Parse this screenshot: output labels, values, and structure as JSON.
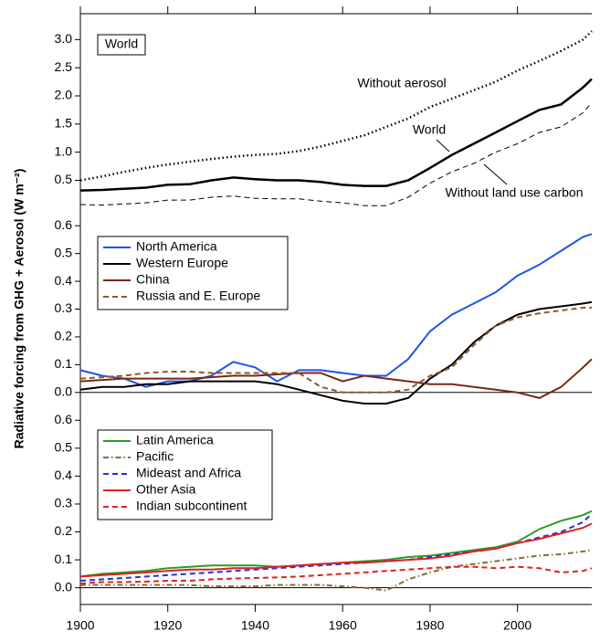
{
  "chart_data": [
    {
      "type": "line",
      "panel_label": "World",
      "inline_labels": true,
      "x": [
        1900,
        1905,
        1910,
        1915,
        1920,
        1925,
        1930,
        1935,
        1940,
        1945,
        1950,
        1955,
        1960,
        1965,
        1970,
        1975,
        1980,
        1985,
        1990,
        1995,
        2000,
        2005,
        2010,
        2015,
        2017
      ],
      "xlim": [
        1900,
        2017
      ],
      "ylim": [
        -0.06,
        3.46
      ],
      "yticks": [
        {
          "value": 0.5,
          "label": "0.5"
        },
        {
          "value": 1,
          "label": "1.0"
        },
        {
          "value": 1.5,
          "label": "1.5"
        },
        {
          "value": 2,
          "label": "2.0"
        },
        {
          "value": 2.5,
          "label": "2.5"
        },
        {
          "value": 3,
          "label": "3.0"
        }
      ],
      "series": [
        {
          "name": "Without aerosol",
          "color": "#000000",
          "dash": "dotted",
          "line_width": 2.5,
          "values": [
            0.5,
            0.57,
            0.65,
            0.72,
            0.78,
            0.83,
            0.88,
            0.92,
            0.95,
            0.97,
            1.02,
            1.1,
            1.2,
            1.3,
            1.45,
            1.6,
            1.8,
            1.95,
            2.1,
            2.25,
            2.45,
            2.62,
            2.8,
            3.0,
            3.15
          ]
        },
        {
          "name": "World",
          "color": "#000000",
          "dash": "solid",
          "line_width": 2.5,
          "values": [
            0.32,
            0.33,
            0.35,
            0.37,
            0.42,
            0.43,
            0.5,
            0.55,
            0.52,
            0.5,
            0.5,
            0.47,
            0.42,
            0.4,
            0.4,
            0.5,
            0.72,
            0.95,
            1.15,
            1.35,
            1.55,
            1.75,
            1.85,
            2.15,
            2.3
          ]
        },
        {
          "name": "Without land use carbon",
          "color": "#000000",
          "dash": "dashed",
          "line_width": 1,
          "values": [
            0.07,
            0.06,
            0.08,
            0.1,
            0.15,
            0.15,
            0.2,
            0.22,
            0.18,
            0.17,
            0.17,
            0.13,
            0.1,
            0.05,
            0.05,
            0.2,
            0.45,
            0.65,
            0.8,
            1.0,
            1.15,
            1.35,
            1.45,
            1.7,
            1.88
          ]
        }
      ]
    },
    {
      "type": "line",
      "legend": true,
      "zero_line": true,
      "ylabel": "Radiative forcing from GHG + Aerosol (W m⁻²)",
      "x": [
        1900,
        1905,
        1910,
        1915,
        1920,
        1925,
        1930,
        1935,
        1940,
        1945,
        1950,
        1955,
        1960,
        1965,
        1970,
        1975,
        1980,
        1985,
        1990,
        1995,
        2000,
        2005,
        2010,
        2015,
        2017
      ],
      "xlim": [
        1900,
        2017
      ],
      "ylim": [
        -0.05,
        0.65
      ],
      "yticks": [
        {
          "value": 0,
          "label": "0.0"
        },
        {
          "value": 0.1,
          "label": "0.1"
        },
        {
          "value": 0.2,
          "label": "0.2"
        },
        {
          "value": 0.3,
          "label": "0.3"
        },
        {
          "value": 0.4,
          "label": "0.4"
        },
        {
          "value": 0.5,
          "label": "0.5"
        },
        {
          "value": 0.6,
          "label": "0.6"
        }
      ],
      "series": [
        {
          "name": "North America",
          "color": "#1a56e8",
          "dash": "solid",
          "line_width": 2,
          "values": [
            0.08,
            0.06,
            0.05,
            0.02,
            0.04,
            0.04,
            0.06,
            0.11,
            0.09,
            0.04,
            0.08,
            0.08,
            0.07,
            0.06,
            0.06,
            0.12,
            0.22,
            0.28,
            0.32,
            0.36,
            0.42,
            0.46,
            0.51,
            0.56,
            0.57
          ]
        },
        {
          "name": "Western Europe",
          "color": "#000000",
          "dash": "solid",
          "line_width": 2,
          "values": [
            0.01,
            0.02,
            0.02,
            0.03,
            0.03,
            0.04,
            0.04,
            0.04,
            0.04,
            0.03,
            0.01,
            -0.01,
            -0.03,
            -0.04,
            -0.04,
            -0.02,
            0.05,
            0.1,
            0.18,
            0.24,
            0.28,
            0.3,
            0.31,
            0.32,
            0.325
          ]
        },
        {
          "name": "China",
          "color": "#7a2812",
          "dash": "solid",
          "line_width": 2,
          "values": [
            0.04,
            0.045,
            0.05,
            0.05,
            0.05,
            0.05,
            0.055,
            0.06,
            0.06,
            0.065,
            0.07,
            0.07,
            0.04,
            0.06,
            0.05,
            0.04,
            0.03,
            0.03,
            0.02,
            0.01,
            0.0,
            -0.02,
            0.02,
            0.09,
            0.12
          ]
        },
        {
          "name": "Russia and E. Europe",
          "color": "#8b5a2b",
          "dash": "dashed",
          "line_width": 2,
          "values": [
            0.05,
            0.055,
            0.06,
            0.07,
            0.075,
            0.075,
            0.07,
            0.07,
            0.07,
            0.07,
            0.07,
            0.02,
            0.0,
            0.0,
            0.0,
            0.01,
            0.06,
            0.09,
            0.17,
            0.24,
            0.27,
            0.285,
            0.295,
            0.305,
            0.305
          ]
        }
      ]
    },
    {
      "type": "line",
      "legend": true,
      "zero_line": true,
      "x": [
        1900,
        1905,
        1910,
        1915,
        1920,
        1925,
        1930,
        1935,
        1940,
        1945,
        1950,
        1955,
        1960,
        1965,
        1970,
        1975,
        1980,
        1985,
        1990,
        1995,
        2000,
        2005,
        2010,
        2015,
        2017
      ],
      "xlim": [
        1900,
        2017
      ],
      "ylim": [
        -0.06,
        0.65
      ],
      "xticks": [
        1900,
        1920,
        1940,
        1960,
        1980,
        2000
      ],
      "yticks": [
        {
          "value": 0,
          "label": "0.0"
        },
        {
          "value": 0.1,
          "label": "0.1"
        },
        {
          "value": 0.2,
          "label": "0.2"
        },
        {
          "value": 0.3,
          "label": "0.3"
        },
        {
          "value": 0.4,
          "label": "0.4"
        },
        {
          "value": 0.5,
          "label": "0.5"
        },
        {
          "value": 0.6,
          "label": "0.6"
        }
      ],
      "series": [
        {
          "name": "Latin America",
          "color": "#2a9d2a",
          "dash": "solid",
          "line_width": 2,
          "values": [
            0.04,
            0.05,
            0.055,
            0.06,
            0.07,
            0.075,
            0.08,
            0.08,
            0.08,
            0.075,
            0.08,
            0.085,
            0.09,
            0.095,
            0.1,
            0.11,
            0.115,
            0.125,
            0.135,
            0.145,
            0.165,
            0.21,
            0.24,
            0.26,
            0.275
          ]
        },
        {
          "name": "Pacific",
          "color": "#8b6a3a",
          "dash": "dashdot",
          "line_width": 2,
          "values": [
            0.01,
            0.01,
            0.01,
            0.01,
            0.01,
            0.01,
            0.005,
            0.005,
            0.005,
            0.01,
            0.01,
            0.01,
            0.005,
            0.0,
            -0.01,
            0.03,
            0.055,
            0.075,
            0.085,
            0.095,
            0.105,
            0.115,
            0.12,
            0.13,
            0.135
          ]
        },
        {
          "name": "Mideast and Africa",
          "color": "#2233dd",
          "dash": "dashed",
          "line_width": 2,
          "values": [
            0.025,
            0.03,
            0.035,
            0.04,
            0.045,
            0.05,
            0.055,
            0.06,
            0.065,
            0.07,
            0.075,
            0.08,
            0.085,
            0.09,
            0.095,
            0.1,
            0.11,
            0.12,
            0.13,
            0.14,
            0.16,
            0.18,
            0.2,
            0.235,
            0.265
          ]
        },
        {
          "name": "Other Asia",
          "color": "#e02020",
          "dash": "solid",
          "line_width": 2,
          "values": [
            0.04,
            0.045,
            0.05,
            0.055,
            0.06,
            0.065,
            0.065,
            0.07,
            0.07,
            0.075,
            0.08,
            0.085,
            0.09,
            0.09,
            0.095,
            0.1,
            0.105,
            0.115,
            0.13,
            0.14,
            0.16,
            0.175,
            0.195,
            0.215,
            0.23
          ]
        },
        {
          "name": "Indian subcontinent",
          "color": "#e02020",
          "dash": "dashed",
          "line_width": 2,
          "values": [
            0.015,
            0.02,
            0.02,
            0.022,
            0.025,
            0.025,
            0.03,
            0.033,
            0.035,
            0.037,
            0.04,
            0.045,
            0.05,
            0.055,
            0.06,
            0.065,
            0.07,
            0.075,
            0.075,
            0.07,
            0.075,
            0.07,
            0.055,
            0.06,
            0.07
          ]
        }
      ]
    }
  ]
}
